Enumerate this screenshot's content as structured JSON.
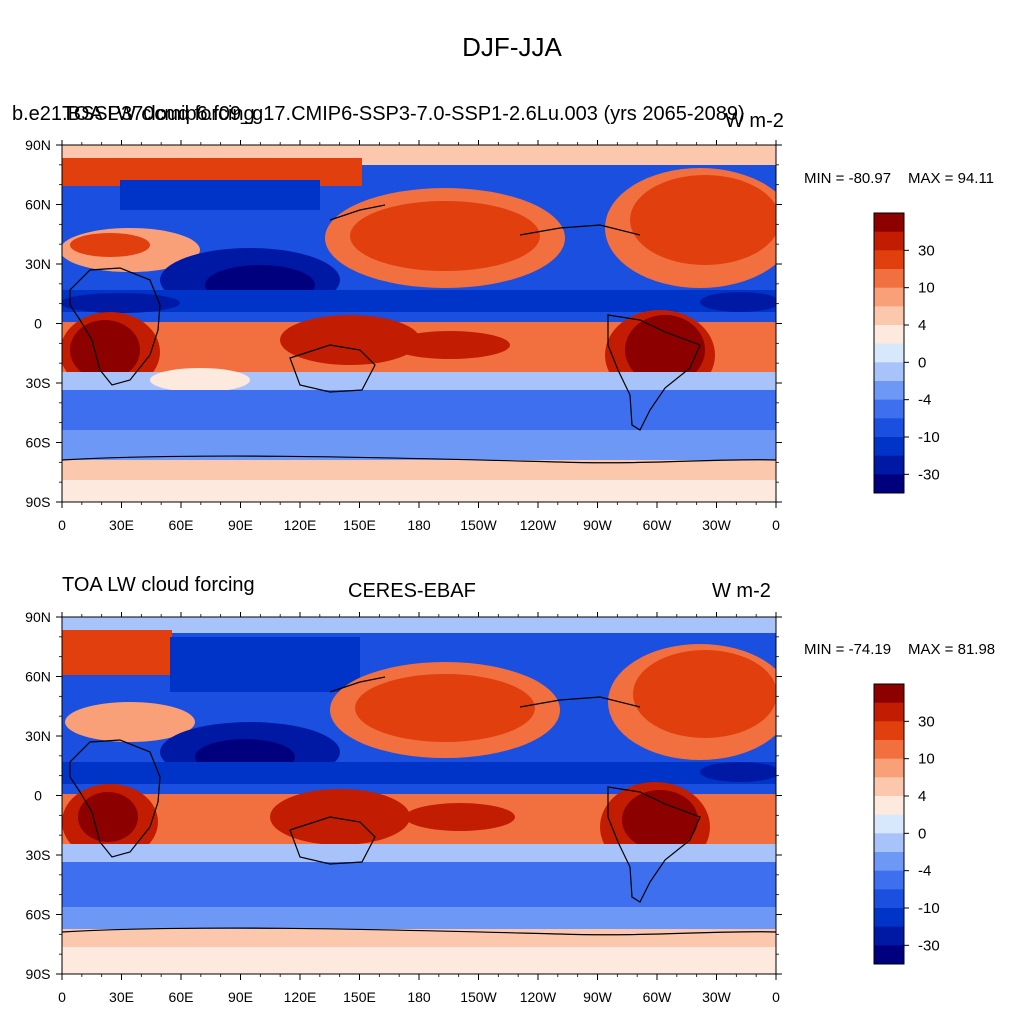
{
  "figure": {
    "title": "DJF-JJA"
  },
  "colors": {
    "levels": [
      "#00007f",
      "#0019a5",
      "#0033c8",
      "#1a4fe0",
      "#3d6fee",
      "#6e98f5",
      "#a7c3fa",
      "#d7e8fd",
      "#fde9dd",
      "#fcc8ad",
      "#f9a078",
      "#f2703f",
      "#e13f0d",
      "#c21d02",
      "#8c0000"
    ],
    "coastline": "#000000"
  },
  "chart_data": [
    {
      "type": "heatmap",
      "left_title": "TOA LW cloud forcing",
      "center_title": "b.e21.BSSP370cmip6.f09_g17.CMIP6-SSP3-7.0-SSP1-2.6Lu.003 (yrs 2065-2089)",
      "units": "W m-2",
      "min_label": "MIN = -80.97",
      "max_label": "MAX =  94.11",
      "lat_ticks": [
        "90N",
        "60N",
        "30N",
        "0",
        "30S",
        "60S",
        "90S"
      ],
      "lon_ticks": [
        "0",
        "30E",
        "60E",
        "90E",
        "120E",
        "150E",
        "180",
        "150W",
        "120W",
        "90W",
        "60W",
        "30W",
        "0"
      ],
      "colorbar_labels": [
        "30",
        "10",
        "4",
        "0",
        "-4",
        "-10",
        "-30"
      ]
    },
    {
      "type": "heatmap",
      "left_title": "TOA LW cloud forcing",
      "center_title": "CERES-EBAF",
      "units": "W m-2",
      "min_label": "MIN = -74.19",
      "max_label": "MAX =  81.98",
      "lat_ticks": [
        "90N",
        "60N",
        "30N",
        "0",
        "30S",
        "60S",
        "90S"
      ],
      "lon_ticks": [
        "0",
        "30E",
        "60E",
        "90E",
        "120E",
        "150E",
        "180",
        "150W",
        "120W",
        "90W",
        "60W",
        "30W",
        "0"
      ],
      "colorbar_labels": [
        "30",
        "10",
        "4",
        "0",
        "-4",
        "-10",
        "-30"
      ]
    }
  ]
}
